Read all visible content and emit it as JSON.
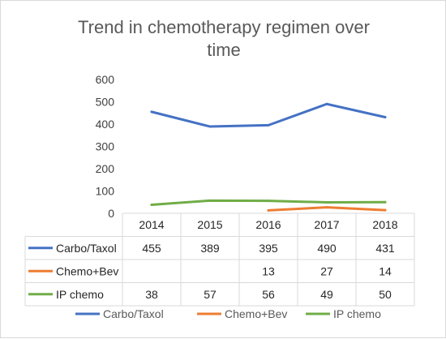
{
  "chart_data": {
    "type": "line",
    "title_line1": "Trend in chemotherapy regimen over",
    "title_line2": "time",
    "categories": [
      "2014",
      "2015",
      "2016",
      "2017",
      "2018"
    ],
    "ylim": [
      0,
      600
    ],
    "yticks": [
      "600",
      "500",
      "400",
      "300",
      "200",
      "100",
      "0"
    ],
    "grid": false,
    "legend_position": "bottom",
    "data_table": true,
    "series": [
      {
        "name": "Carbo/Taxol",
        "color": "#4472C4",
        "values": [
          455,
          389,
          395,
          490,
          431
        ],
        "labels": [
          "455",
          "389",
          "395",
          "490",
          "431"
        ]
      },
      {
        "name": "Chemo+Bev",
        "color": "#ED7D31",
        "values": [
          null,
          null,
          13,
          27,
          14
        ],
        "labels": [
          "",
          "",
          "13",
          "27",
          "14"
        ]
      },
      {
        "name": "IP chemo",
        "color": "#70AD47",
        "values": [
          38,
          57,
          56,
          49,
          50
        ],
        "labels": [
          "38",
          "57",
          "56",
          "49",
          "50"
        ]
      }
    ]
  }
}
